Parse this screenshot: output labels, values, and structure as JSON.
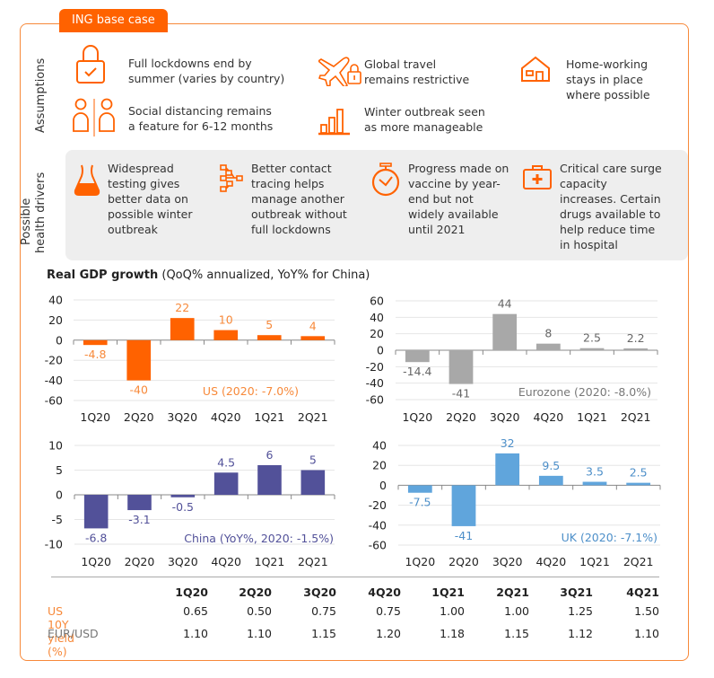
{
  "tag": "ING base case",
  "sections": {
    "assumptions_label": "Assumptions",
    "drivers_label_line1": "Possible",
    "drivers_label_line2": "health drivers"
  },
  "assumptions": [
    {
      "icon": "padlock-check-icon",
      "line1": "Full lockdowns end by",
      "line2": "summer (varies by country)",
      "line3": ""
    },
    {
      "icon": "plane-lock-icon",
      "line1": "Global travel",
      "line2": "remains restrictive",
      "line3": ""
    },
    {
      "icon": "house-icon",
      "line1": "Home-working",
      "line2": "stays in place",
      "line3": "where possible"
    },
    {
      "icon": "people-distancing-icon",
      "line1": "Social distancing remains",
      "line2": "a feature for 6-12 months",
      "line3": ""
    },
    {
      "icon": "bar-chart-icon",
      "line1": "Winter outbreak seen",
      "line2": "as more manageable",
      "line3": ""
    }
  ],
  "drivers": [
    {
      "icon": "flask-icon",
      "lines": [
        "Widespread",
        "testing gives",
        "better data on",
        "possible winter",
        "outbreak"
      ]
    },
    {
      "icon": "network-icon",
      "lines": [
        "Better contact",
        "tracing helps",
        "manage another",
        "outbreak without",
        "full lockdowns"
      ]
    },
    {
      "icon": "stopwatch-icon",
      "lines": [
        "Progress made on",
        "vaccine by year-",
        "end but not",
        "widely available",
        "until 2021"
      ]
    },
    {
      "icon": "medical-kit-icon",
      "lines": [
        "Critical care surge",
        "capacity",
        "increases. Certain",
        "drugs available to",
        "help reduce time",
        "in hospital"
      ]
    }
  ],
  "gdp_header": {
    "bold": "Real GDP growth",
    "note": "(QoQ% annualized, YoY% for China)"
  },
  "chart_data": [
    {
      "type": "bar",
      "title": "US (2020: -7.0%)",
      "categories": [
        "1Q20",
        "2Q20",
        "3Q20",
        "4Q20",
        "1Q21",
        "2Q21"
      ],
      "values": [
        -4.8,
        -40,
        22,
        10,
        5,
        4
      ],
      "labels": [
        "-4.8",
        "-40",
        "22",
        "10",
        "5",
        "4"
      ],
      "yticks": [
        40,
        20,
        0,
        -20,
        -40,
        -60
      ],
      "ylim": [
        -60,
        40
      ],
      "color": "#ff6200",
      "label_color": "#f7893a",
      "title_color": "#f7893a",
      "grid": true
    },
    {
      "type": "bar",
      "title": "Eurozone (2020: -8.0%)",
      "categories": [
        "1Q20",
        "2Q20",
        "3Q20",
        "4Q20",
        "1Q21",
        "2Q21"
      ],
      "values": [
        -14.4,
        -41,
        44,
        8,
        2.5,
        2.2
      ],
      "labels": [
        "-14.4",
        "-41",
        "44",
        "8",
        "2.5",
        "2.2"
      ],
      "yticks": [
        60,
        40,
        20,
        0,
        -20,
        -40,
        -60
      ],
      "ylim": [
        -60,
        60
      ],
      "color": "#a8a8a8",
      "label_color": "#666666",
      "title_color": "#777777",
      "grid": true
    },
    {
      "type": "bar",
      "title": "China (YoY%, 2020: -1.5%)",
      "categories": [
        "1Q20",
        "2Q20",
        "3Q20",
        "4Q20",
        "1Q21",
        "2Q21"
      ],
      "values": [
        -6.8,
        -3.1,
        -0.5,
        4.5,
        6,
        5
      ],
      "labels": [
        "-6.8",
        "-3.1",
        "-0.5",
        "4.5",
        "6",
        "5"
      ],
      "yticks": [
        10,
        5,
        0,
        -5,
        -10
      ],
      "ylim": [
        -10,
        10
      ],
      "color": "#525199",
      "label_color": "#525199",
      "title_color": "#525199",
      "grid": true
    },
    {
      "type": "bar",
      "title": "UK (2020: -7.1%)",
      "categories": [
        "1Q20",
        "2Q20",
        "3Q20",
        "4Q20",
        "1Q21",
        "2Q21"
      ],
      "values": [
        -7.5,
        -41,
        32,
        9.5,
        3.5,
        2.5
      ],
      "labels": [
        "-7.5",
        "-41",
        "32",
        "9.5",
        "3.5",
        "2.5"
      ],
      "yticks": [
        40,
        20,
        0,
        -20,
        -40,
        -60
      ],
      "ylim": [
        -60,
        40
      ],
      "color": "#60a5dc",
      "label_color": "#4d8fc9",
      "title_color": "#4d8fc9",
      "grid": true
    }
  ],
  "table": {
    "columns": [
      "1Q20",
      "2Q20",
      "3Q20",
      "4Q20",
      "1Q21",
      "2Q21",
      "3Q21",
      "4Q21"
    ],
    "rows": [
      {
        "label": "US 10Y yield (%)",
        "label_color": "#f7893a",
        "values": [
          "0.65",
          "0.50",
          "0.75",
          "0.75",
          "1.00",
          "1.00",
          "1.25",
          "1.50"
        ]
      },
      {
        "label": "EUR/USD",
        "label_color": "#777777",
        "values": [
          "1.10",
          "1.10",
          "1.15",
          "1.20",
          "1.18",
          "1.15",
          "1.12",
          "1.10"
        ]
      }
    ]
  },
  "colors": {
    "accent": "#ff6200",
    "frame": "#f7893a",
    "panel": "#eeeeee"
  }
}
